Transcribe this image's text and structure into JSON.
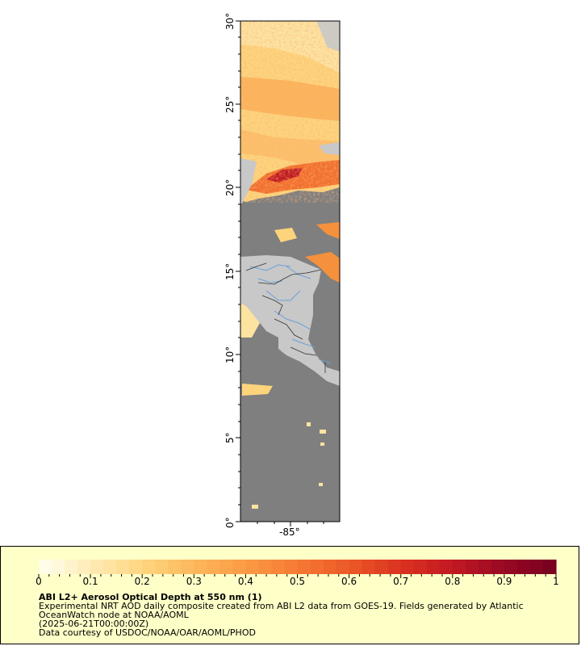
{
  "map": {
    "latitude_labels": [
      "0°",
      "5°",
      "10°",
      "15°",
      "20°",
      "25°",
      "30°"
    ],
    "longitude_labels": [
      "-85°"
    ],
    "colors": {
      "land": "#c8c8c8",
      "no_data_ocean": "#7f7f7f",
      "borders": "#333333",
      "rivers": "#6aa0d8"
    }
  },
  "legend": {
    "colorbar_ticks": [
      "0",
      "0.1",
      "0.2",
      "0.3",
      "0.4",
      "0.5",
      "0.6",
      "0.7",
      "0.8",
      "0.9",
      "1"
    ],
    "colorbar_colors": [
      "#fffde8",
      "#ffe9b0",
      "#fdd47c",
      "#fcb65a",
      "#fb9a44",
      "#f57a34",
      "#ec5a28",
      "#dc3420",
      "#c41a22",
      "#9c0a24",
      "#7a0020"
    ],
    "title": "ABI L2+ Aerosol Optical Depth at 550 nm (1)",
    "line1": "Experimental NRT AOD daily composite created from ABI L2 data from GOES-19. Fields generated by Atlantic",
    "line2": "OceanWatch node at NOAA/AOML",
    "line3": "(2025-06-21T00:00:00Z)",
    "line4": "Data courtesy of USDOC/NOAA/OAR/AOML/PHOD"
  }
}
